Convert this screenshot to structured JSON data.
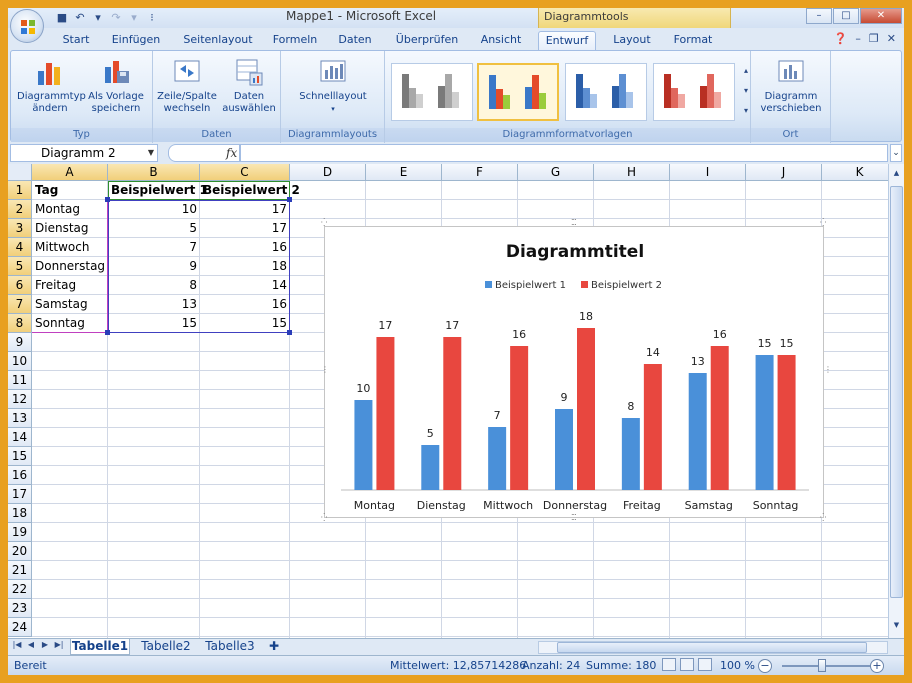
{
  "window": {
    "title": "Mappe1 - Microsoft Excel",
    "contextual_tools": "Diagrammtools"
  },
  "tabs": [
    "Start",
    "Einfügen",
    "Seitenlayout",
    "Formeln",
    "Daten",
    "Überprüfen",
    "Ansicht",
    "Entwurf",
    "Layout",
    "Format"
  ],
  "active_tab": "Entwurf",
  "ribbon": {
    "groups": {
      "typ": "Typ",
      "daten": "Daten",
      "layouts": "Diagrammlayouts",
      "vorlagen": "Diagrammformatvorlagen",
      "ort": "Ort"
    },
    "buttons": {
      "diagrammtyp_1": "Diagrammtyp",
      "diagrammtyp_2": "ändern",
      "vorlage_1": "Als Vorlage",
      "vorlage_2": "speichern",
      "zeile_1": "Zeile/Spalte",
      "zeile_2": "wechseln",
      "daten_1": "Daten",
      "daten_2": "auswählen",
      "schnell": "Schnelllayout",
      "verschieben_1": "Diagramm",
      "verschieben_2": "verschieben"
    }
  },
  "formula_bar": {
    "name_box": "Diagramm 2",
    "fx": "fx",
    "content": ""
  },
  "columns": [
    "A",
    "B",
    "C",
    "D",
    "E",
    "F",
    "G",
    "H",
    "I",
    "J",
    "K"
  ],
  "rows": [
    "1",
    "2",
    "3",
    "4",
    "5",
    "6",
    "7",
    "8",
    "9",
    "10",
    "11",
    "12",
    "13",
    "14",
    "15",
    "16",
    "17",
    "18",
    "19",
    "20",
    "21",
    "22",
    "23",
    "24"
  ],
  "table": {
    "header": [
      "Tag",
      "Beispielwert 1",
      "Beispielwert 2"
    ],
    "rows": [
      [
        "Montag",
        "10",
        "17"
      ],
      [
        "Dienstag",
        "5",
        "17"
      ],
      [
        "Mittwoch",
        "7",
        "16"
      ],
      [
        "Donnerstag",
        "9",
        "18"
      ],
      [
        "Freitag",
        "8",
        "14"
      ],
      [
        "Samstag",
        "13",
        "16"
      ],
      [
        "Sonntag",
        "15",
        "15"
      ]
    ]
  },
  "chart_data": {
    "type": "bar",
    "title": "Diagrammtitel",
    "categories": [
      "Montag",
      "Dienstag",
      "Mittwoch",
      "Donnerstag",
      "Freitag",
      "Samstag",
      "Sonntag"
    ],
    "series": [
      {
        "name": "Beispielwert 1",
        "values": [
          10,
          5,
          7,
          9,
          8,
          13,
          15
        ],
        "color": "#4a90d9"
      },
      {
        "name": "Beispielwert 2",
        "values": [
          17,
          17,
          16,
          18,
          14,
          16,
          15
        ],
        "color": "#e8473f"
      }
    ],
    "ylim": [
      0,
      20
    ],
    "legend": "top",
    "grid": false
  },
  "sheets": [
    "Tabelle1",
    "Tabelle2",
    "Tabelle3"
  ],
  "active_sheet": "Tabelle1",
  "status": {
    "mode": "Bereit",
    "mittelwert": "Mittelwert: 12,85714286",
    "anzahl": "Anzahl: 24",
    "summe": "Summe: 180",
    "zoom": "100 %"
  },
  "colors": {
    "accent": "#15428b",
    "contextual": "#f0d77a"
  }
}
